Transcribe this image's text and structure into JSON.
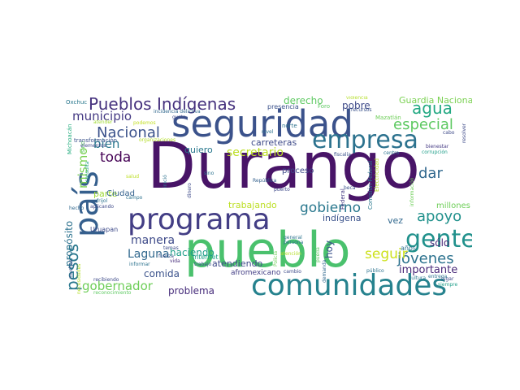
{
  "words": [
    {
      "text": "Durango",
      "color": "#481467"
    },
    {
      "text": "pueblo",
      "color": "#4ac16d"
    },
    {
      "text": "seguridad",
      "color": "#3b528b"
    },
    {
      "text": "programa",
      "color": "#433e85"
    },
    {
      "text": "comunidades",
      "color": "#26828e"
    },
    {
      "text": "país",
      "color": "#355f8d"
    },
    {
      "text": "empresa",
      "color": "#2c728e"
    },
    {
      "text": "gente",
      "color": "#21918c"
    },
    {
      "text": "Pueblos Indígenas",
      "color": "#46327e"
    },
    {
      "text": "agua",
      "color": "#23a983"
    },
    {
      "text": "jóvenes",
      "color": "#2c728e"
    },
    {
      "text": "apoyo",
      "color": "#21918c"
    },
    {
      "text": "Nacional",
      "color": "#3b528b"
    },
    {
      "text": "gobierno",
      "color": "#2a788e"
    },
    {
      "text": "seguir",
      "color": "#cde11d"
    },
    {
      "text": "especial",
      "color": "#5ec962"
    },
    {
      "text": "dar",
      "color": "#31688e"
    },
    {
      "text": "pesos",
      "color": "#2a788e"
    },
    {
      "text": "toda",
      "color": "#440154"
    },
    {
      "text": "municipio",
      "color": "#443983"
    },
    {
      "text": "bien",
      "color": "#2a788e"
    },
    {
      "text": "mismo",
      "color": "#7ad151"
    },
    {
      "text": "secretario",
      "color": "#bddf26"
    },
    {
      "text": "manera",
      "color": "#3e4a89"
    },
    {
      "text": "Laguna",
      "color": "#31688e"
    },
    {
      "text": "gobernador",
      "color": "#6ece58"
    },
    {
      "text": "importante",
      "color": "#482878"
    },
    {
      "text": "derecho",
      "color": "#5ec962"
    },
    {
      "text": "Guardia Nacional",
      "color": "#7ad151"
    },
    {
      "text": "pobre",
      "color": "#3e4a89"
    },
    {
      "text": "carreteras",
      "color": "#3e4a89"
    },
    {
      "text": "quiero",
      "color": "#2a788e"
    },
    {
      "text": "haciendo",
      "color": "#1f9e89"
    },
    {
      "text": "trabajando",
      "color": "#bddf26"
    },
    {
      "text": "comida",
      "color": "#3b528b"
    },
    {
      "text": "problema",
      "color": "#472d7b"
    },
    {
      "text": "atendiendo",
      "color": "#3e4a89"
    },
    {
      "text": "afromexicano",
      "color": "#433e85"
    },
    {
      "text": "propósito",
      "color": "#2c728e"
    },
    {
      "text": "parte",
      "color": "#a0da39"
    },
    {
      "text": "Ciudad",
      "color": "#34618d"
    },
    {
      "text": "proceso",
      "color": "#3e4a89"
    },
    {
      "text": "sólo",
      "color": "#482878"
    },
    {
      "text": "hoy",
      "color": "#3b528b"
    },
    {
      "text": "indígena",
      "color": "#3b528b"
    },
    {
      "text": "millones",
      "color": "#6ece58"
    },
    {
      "text": "vez",
      "color": "#31688e"
    },
    {
      "text": "años",
      "color": "#2c728e"
    },
    {
      "text": "Uruapan",
      "color": "#3e4a89"
    },
    {
      "text": "internet",
      "color": "#1fa088"
    },
    {
      "text": "Oxchuc",
      "color": "#2a788e"
    },
    {
      "text": "presencia",
      "color": "#3b528b"
    },
    {
      "text": "norte",
      "color": "#2c728e"
    },
    {
      "text": "Foro",
      "color": "#5ec962"
    },
    {
      "text": "violencia",
      "color": "#b5de2b"
    },
    {
      "text": "recursos",
      "color": "#3b528b"
    },
    {
      "text": "incidencia delictiva",
      "color": "#31688e"
    },
    {
      "text": "gusta",
      "color": "#3e4a89"
    },
    {
      "text": "podemos",
      "color": "#c2df23"
    },
    {
      "text": "atender",
      "color": "#a2da37"
    },
    {
      "text": "Mazatlán",
      "color": "#6ece58"
    },
    {
      "text": "Michoacán",
      "color": "#28ae80"
    },
    {
      "text": "sino",
      "color": "#5ec962"
    },
    {
      "text": "transformación",
      "color": "#3b528b"
    },
    {
      "text": "elementos",
      "color": "#3e4a89"
    },
    {
      "text": "organizaciones",
      "color": "#b5de2b"
    },
    {
      "text": "nivel",
      "color": "#2c728e"
    },
    {
      "text": "cultura",
      "color": "#2a788e"
    },
    {
      "text": "cabo",
      "color": "#3e4a89"
    },
    {
      "text": "resolver",
      "color": "#3e4a89"
    },
    {
      "text": "corrupción",
      "color": "#1f9e89"
    },
    {
      "text": "bienestar",
      "color": "#443983"
    },
    {
      "text": "centro",
      "color": "#2c728e"
    },
    {
      "text": "fiscalía",
      "color": "#3b528b"
    },
    {
      "text": "República",
      "color": "#34618d"
    },
    {
      "text": "inició",
      "color": "#2c728e"
    },
    {
      "text": "dinero",
      "color": "#3e4a89"
    },
    {
      "text": "salud",
      "color": "#bddf26"
    },
    {
      "text": "consulta",
      "color": "#1f9e89"
    },
    {
      "text": "aplicando",
      "color": "#3e4a89"
    },
    {
      "text": "frijol",
      "color": "#2c728e"
    },
    {
      "text": "campo",
      "color": "#2c728e"
    },
    {
      "text": "hecho",
      "color": "#31688e"
    },
    {
      "text": "fuerza",
      "color": "#3b528b"
    },
    {
      "text": "temas",
      "color": "#3e4a89"
    },
    {
      "text": "vida",
      "color": "#472d7b"
    },
    {
      "text": "informar",
      "color": "#2c728e"
    },
    {
      "text": "recibiendo",
      "color": "#3e4a89"
    },
    {
      "text": "trabajo",
      "color": "#3b528b"
    },
    {
      "text": "reconocimiento",
      "color": "#5ec962"
    },
    {
      "text": "muchas",
      "color": "#3b528b"
    },
    {
      "text": "Comisión Federal",
      "color": "#2a788e"
    },
    {
      "text": "Electricidad",
      "color": "#b5de2b"
    },
    {
      "text": "Federal",
      "color": "#443983"
    },
    {
      "text": "beca",
      "color": "#3b528b"
    },
    {
      "text": "información",
      "color": "#6ece58"
    },
    {
      "text": "lugar",
      "color": "#3e4a89"
    },
    {
      "text": "entrega",
      "color": "#2c728e"
    },
    {
      "text": "siempre",
      "color": "#1f9e89"
    },
    {
      "text": "público",
      "color": "#2c728e"
    },
    {
      "text": "cambio",
      "color": "#3e4a89"
    },
    {
      "text": "demanda",
      "color": "#31688e"
    },
    {
      "text": "pueda",
      "color": "#5ec962"
    },
    {
      "text": "Policía",
      "color": "#6ece58"
    },
    {
      "text": "general",
      "color": "#2c728e"
    },
    {
      "text": "persona",
      "color": "#2c728e"
    },
    {
      "text": "puerto",
      "color": "#3e4a89"
    },
    {
      "text": "atención",
      "color": "#b5de2b"
    },
    {
      "text": "sino",
      "color": "#2c728e"
    },
    {
      "text": "necesidades",
      "color": "#b5de2b"
    }
  ]
}
